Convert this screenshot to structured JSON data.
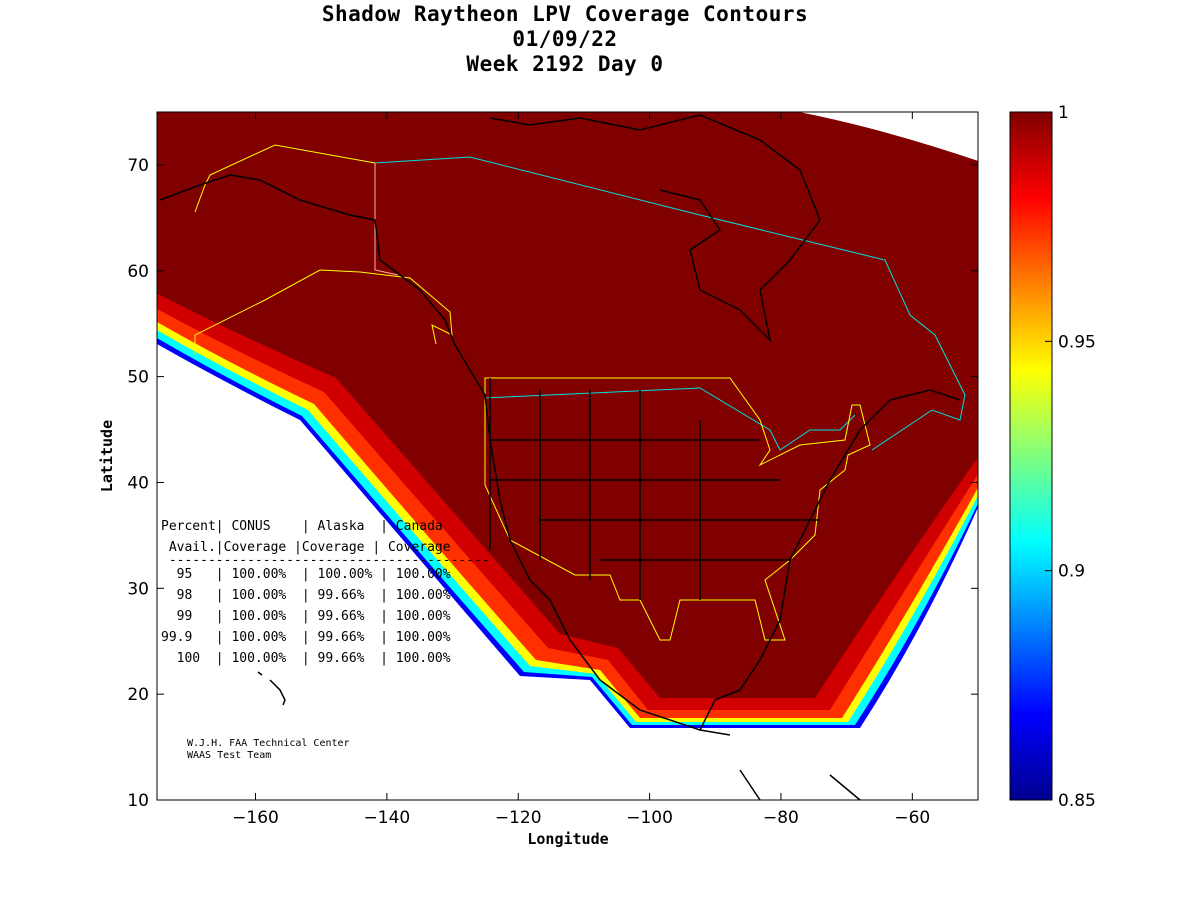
{
  "chart_data": {
    "type": "heatmap",
    "title": [
      "Shadow Raytheon LPV Coverage Contours",
      "01/09/22",
      "Week 2192 Day 0"
    ],
    "xlabel": "Longitude",
    "ylabel": "Latitude",
    "xlim": [
      -175,
      -50
    ],
    "ylim": [
      10,
      75
    ],
    "xticks": [
      -160,
      -140,
      -120,
      -100,
      -80,
      -60
    ],
    "yticks": [
      10,
      20,
      30,
      40,
      50,
      60,
      70
    ],
    "colorbar": {
      "range": [
        0.85,
        1
      ],
      "ticks": [
        "0.85",
        "0.9",
        "0.95",
        "1"
      ],
      "colormap": "jet"
    },
    "table": {
      "header1": [
        "Percent",
        "CONUS",
        "Alaska",
        "Canada"
      ],
      "header2": [
        "Avail.",
        "Coverage",
        "Coverage",
        "Coverage"
      ],
      "rows": [
        [
          "95",
          "100.00%",
          "100.00%",
          "100.00%"
        ],
        [
          "98",
          "100.00%",
          "99.66%",
          "100.00%"
        ],
        [
          "99",
          "100.00%",
          "99.66%",
          "100.00%"
        ],
        [
          "99.9",
          "100.00%",
          "99.66%",
          "100.00%"
        ],
        [
          "100",
          "100.00%",
          "99.66%",
          "100.00%"
        ]
      ]
    },
    "credits": [
      "W.J.H. FAA Technical Center",
      "WAAS Test Team"
    ]
  }
}
